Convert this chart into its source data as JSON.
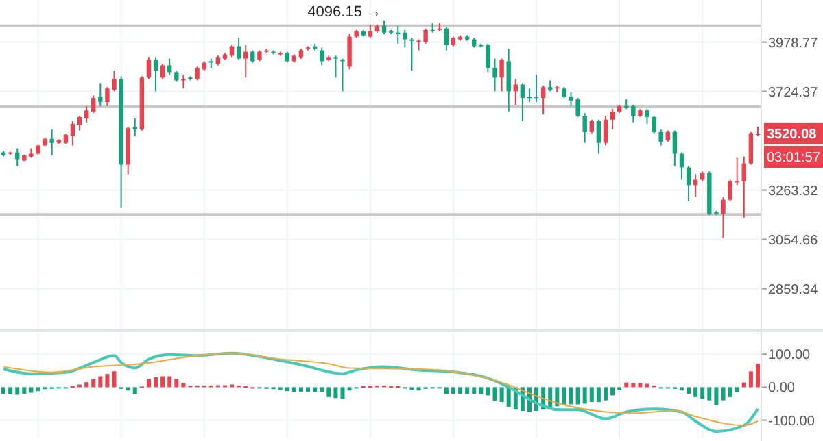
{
  "chart_data": [
    {
      "type": "candlestick",
      "categories": [
        null,
        null,
        null,
        null,
        null,
        null,
        null,
        null,
        null,
        null,
        null,
        null,
        null,
        null,
        null,
        null,
        null,
        null,
        null,
        null,
        null,
        null,
        null,
        null,
        null,
        null,
        null,
        null,
        null,
        null,
        null,
        null,
        null,
        null,
        null,
        null,
        null,
        null,
        null,
        null,
        null,
        null,
        null,
        null,
        null,
        null,
        null,
        null,
        null,
        null,
        null,
        null,
        null,
        null,
        null,
        null,
        null,
        null,
        null,
        null,
        null,
        null,
        null,
        null,
        null,
        null,
        null,
        null,
        null,
        null,
        null,
        null,
        null,
        null,
        null,
        null,
        null,
        null,
        null,
        null,
        null,
        null,
        null,
        null,
        null,
        null,
        null,
        null,
        null,
        null,
        null,
        null,
        null,
        null,
        null,
        null,
        null,
        null,
        null,
        null,
        null,
        null,
        null,
        null,
        null,
        null,
        null,
        null,
        null,
        null
      ],
      "ohlc": [
        [
          3432,
          3438,
          3413,
          3419
        ],
        [
          3426,
          3435,
          3422,
          3432
        ],
        [
          3432,
          3451,
          3370,
          3401
        ],
        [
          3395,
          3422,
          3392,
          3419
        ],
        [
          3413,
          3451,
          3407,
          3426
        ],
        [
          3426,
          3467,
          3423,
          3464
        ],
        [
          3464,
          3502,
          3462,
          3495
        ],
        [
          3495,
          3540,
          3419,
          3476
        ],
        [
          3476,
          3493,
          3472,
          3489
        ],
        [
          3476,
          3518,
          3472,
          3514
        ],
        [
          3508,
          3579,
          3464,
          3566
        ],
        [
          3560,
          3605,
          3534,
          3599
        ],
        [
          3592,
          3652,
          3573,
          3631
        ],
        [
          3625,
          3705,
          3618,
          3692
        ],
        [
          3698,
          3766,
          3652,
          3672
        ],
        [
          3672,
          3746,
          3652,
          3739
        ],
        [
          3732,
          3829,
          3725,
          3787
        ],
        [
          3787,
          3801,
          3186,
          3376
        ],
        [
          3376,
          3553,
          3333,
          3547
        ],
        [
          3553,
          3592,
          3508,
          3540
        ],
        [
          3540,
          3801,
          3534,
          3794
        ],
        [
          3794,
          3900,
          3787,
          3885
        ],
        [
          3885,
          3900,
          3725,
          3829
        ],
        [
          3794,
          3864,
          3787,
          3857
        ],
        [
          3857,
          3892,
          3808,
          3822
        ],
        [
          3822,
          3829,
          3773,
          3780
        ],
        [
          3780,
          3808,
          3739,
          3787
        ],
        [
          3794,
          3801,
          3780,
          3787
        ],
        [
          3787,
          3850,
          3780,
          3843
        ],
        [
          3836,
          3878,
          3829,
          3871
        ],
        [
          3878,
          3892,
          3843,
          3871
        ],
        [
          3864,
          3907,
          3857,
          3900
        ],
        [
          3892,
          3921,
          3885,
          3914
        ],
        [
          3907,
          3964,
          3900,
          3957
        ],
        [
          3957,
          4000,
          3885,
          3892
        ],
        [
          3892,
          3964,
          3794,
          3928
        ],
        [
          3928,
          3935,
          3871,
          3878
        ],
        [
          3885,
          3935,
          3878,
          3928
        ],
        [
          3928,
          3943,
          3921,
          3935
        ],
        [
          3928,
          3935,
          3914,
          3921
        ],
        [
          3914,
          3928,
          3907,
          3921
        ],
        [
          3921,
          3928,
          3871,
          3878
        ],
        [
          3878,
          3914,
          3871,
          3907
        ],
        [
          3900,
          3943,
          3892,
          3935
        ],
        [
          3943,
          3957,
          3935,
          3950
        ],
        [
          3957,
          3971,
          3935,
          3943
        ],
        [
          3935,
          3950,
          3857,
          3878
        ],
        [
          3885,
          3907,
          3878,
          3900
        ],
        [
          3900,
          3907,
          3794,
          3892
        ],
        [
          3885,
          3892,
          3725,
          3878
        ],
        [
          3850,
          4022,
          3836,
          4008
        ],
        [
          4008,
          4044,
          4000,
          4037
        ],
        [
          4037,
          4044,
          4008,
          4015
        ],
        [
          4008,
          4074,
          4000,
          4037
        ],
        [
          4037,
          4074,
          4030,
          4067
        ],
        [
          4067,
          4096.15,
          4022,
          4030
        ],
        [
          4037,
          4044,
          4022,
          4030
        ],
        [
          4030,
          4067,
          3971,
          4022
        ],
        [
          4030,
          4044,
          3950,
          3993
        ],
        [
          3993,
          4000,
          3829,
          3986
        ],
        [
          3979,
          3993,
          3935,
          3986
        ],
        [
          3979,
          4052,
          3971,
          4044
        ],
        [
          4044,
          4081,
          4030,
          4037
        ],
        [
          4044,
          4081,
          4037,
          4052
        ],
        [
          4052,
          4059,
          3935,
          3964
        ],
        [
          3964,
          4008,
          3957,
          4000
        ],
        [
          3993,
          4015,
          3986,
          4008
        ],
        [
          4008,
          4015,
          3986,
          3993
        ],
        [
          3993,
          4000,
          3950,
          3957
        ],
        [
          3964,
          3971,
          3950,
          3957
        ],
        [
          3964,
          3971,
          3822,
          3843
        ],
        [
          3843,
          3892,
          3725,
          3794
        ],
        [
          3794,
          3892,
          3725,
          3885
        ],
        [
          3878,
          3943,
          3625,
          3725
        ],
        [
          3725,
          3787,
          3658,
          3759
        ],
        [
          3759,
          3766,
          3579,
          3692
        ],
        [
          3698,
          3739,
          3672,
          3692
        ],
        [
          3698,
          3808,
          3672,
          3692
        ],
        [
          3692,
          3753,
          3612,
          3746
        ],
        [
          3746,
          3780,
          3725,
          3732
        ],
        [
          3739,
          3753,
          3719,
          3746
        ],
        [
          3739,
          3746,
          3692,
          3698
        ],
        [
          3698,
          3719,
          3652,
          3679
        ],
        [
          3685,
          3692,
          3599,
          3605
        ],
        [
          3605,
          3618,
          3476,
          3527
        ],
        [
          3527,
          3586,
          3521,
          3579
        ],
        [
          3579,
          3586,
          3426,
          3476
        ],
        [
          3476,
          3605,
          3464,
          3586
        ],
        [
          3586,
          3638,
          3540,
          3625
        ],
        [
          3625,
          3658,
          3618,
          3652
        ],
        [
          3652,
          3685,
          3638,
          3645
        ],
        [
          3652,
          3658,
          3573,
          3605
        ],
        [
          3605,
          3638,
          3599,
          3631
        ],
        [
          3631,
          3638,
          3566,
          3599
        ],
        [
          3599,
          3605,
          3521,
          3527
        ],
        [
          3527,
          3540,
          3464,
          3482
        ],
        [
          3489,
          3534,
          3482,
          3527
        ],
        [
          3527,
          3534,
          3370,
          3426
        ],
        [
          3426,
          3432,
          3309,
          3364
        ],
        [
          3364,
          3370,
          3215,
          3285
        ],
        [
          3285,
          3333,
          3232,
          3309
        ],
        [
          3309,
          3346,
          3303,
          3339
        ],
        [
          3339,
          3346,
          3156,
          3162
        ],
        [
          3168,
          3174,
          3156,
          3162
        ],
        [
          3162,
          3232,
          3061,
          3221
        ],
        [
          3221,
          3309,
          3215,
          3303
        ],
        [
          3297,
          3407,
          3285,
          3303
        ],
        [
          3303,
          3413,
          3145,
          3382
        ],
        [
          3382,
          3527,
          3376,
          3521
        ],
        [
          3514,
          3553,
          3508,
          3520.08
        ]
      ],
      "colors": [
        "#12a37b",
        "#e8424e",
        "#12a37b",
        "#e8424e",
        "#e8424e",
        "#e8424e",
        "#e8424e",
        "#12a37b",
        "#e8424e",
        "#e8424e",
        "#e8424e",
        "#e8424e",
        "#e8424e",
        "#e8424e",
        "#12a37b",
        "#e8424e",
        "#e8424e",
        "#12a37b",
        "#e8424e",
        "#12a37b",
        "#e8424e",
        "#e8424e",
        "#12a37b",
        "#e8424e",
        "#12a37b",
        "#12a37b",
        "#e8424e",
        "#12a37b",
        "#e8424e",
        "#e8424e",
        "#12a37b",
        "#e8424e",
        "#e8424e",
        "#e8424e",
        "#12a37b",
        "#e8424e",
        "#12a37b",
        "#e8424e",
        "#e8424e",
        "#12a37b",
        "#e8424e",
        "#12a37b",
        "#e8424e",
        "#e8424e",
        "#e8424e",
        "#12a37b",
        "#12a37b",
        "#e8424e",
        "#12a37b",
        "#12a37b",
        "#e8424e",
        "#e8424e",
        "#12a37b",
        "#e8424e",
        "#e8424e",
        "#12a37b",
        "#12a37b",
        "#12a37b",
        "#12a37b",
        "#12a37b",
        "#e8424e",
        "#e8424e",
        "#12a37b",
        "#e8424e",
        "#12a37b",
        "#e8424e",
        "#e8424e",
        "#12a37b",
        "#12a37b",
        "#12a37b",
        "#12a37b",
        "#12a37b",
        "#e8424e",
        "#12a37b",
        "#e8424e",
        "#12a37b",
        "#12a37b",
        "#12a37b",
        "#e8424e",
        "#12a37b",
        "#e8424e",
        "#12a37b",
        "#12a37b",
        "#12a37b",
        "#12a37b",
        "#e8424e",
        "#12a37b",
        "#e8424e",
        "#e8424e",
        "#e8424e",
        "#12a37b",
        "#12a37b",
        "#e8424e",
        "#12a37b",
        "#12a37b",
        "#12a37b",
        "#e8424e",
        "#12a37b",
        "#12a37b",
        "#12a37b",
        "#e8424e",
        "#e8424e",
        "#12a37b",
        "#12a37b",
        "#e8424e",
        "#e8424e",
        "#e8424e",
        "#e8424e",
        "#e8424e",
        "#e8424e"
      ],
      "ylim": [
        2710,
        4210
      ],
      "yticks": [
        2859.34,
        3054.66,
        3263.32,
        3724.37,
        3978.77
      ],
      "log": true,
      "grid": true,
      "ref_lines": [
        {
          "axis": "y",
          "value": 4067,
          "color": "#c8c8c8"
        },
        {
          "axis": "y",
          "value": 3650,
          "color": "#c8c8c8"
        },
        {
          "axis": "y",
          "value": 3158,
          "color": "#c8c8c8"
        }
      ],
      "annotations": [
        {
          "text": "4096.15 →",
          "y": 4096.15
        },
        "3520.08",
        "03:01:57"
      ]
    },
    {
      "type": "bar",
      "categories": [
        null,
        null,
        null,
        null,
        null,
        null,
        null,
        null,
        null,
        null,
        null,
        null,
        null,
        null,
        null,
        null,
        null,
        null,
        null,
        null,
        null,
        null,
        null,
        null,
        null,
        null,
        null,
        null,
        null,
        null,
        null,
        null,
        null,
        null,
        null,
        null,
        null,
        null,
        null,
        null,
        null,
        null,
        null,
        null,
        null,
        null,
        null,
        null,
        null,
        null,
        null,
        null,
        null,
        null,
        null,
        null,
        null,
        null,
        null,
        null,
        null,
        null,
        null,
        null,
        null,
        null,
        null,
        null,
        null,
        null,
        null,
        null,
        null,
        null,
        null,
        null,
        null,
        null,
        null,
        null,
        null,
        null,
        null,
        null,
        null,
        null,
        null,
        null,
        null,
        null,
        null,
        null,
        null,
        null,
        null,
        null,
        null,
        null,
        null,
        null,
        null,
        null,
        null,
        null,
        null,
        null,
        null,
        null,
        null,
        null
      ],
      "series": [
        {
          "type": "bar",
          "values": [
            -20,
            -22,
            -23,
            -20,
            -17,
            -12,
            -6,
            -5,
            -4,
            -3,
            3,
            8,
            15,
            25,
            33,
            40,
            48,
            -5,
            -10,
            -22,
            2,
            25,
            30,
            33,
            33,
            25,
            12,
            5,
            5,
            5,
            5,
            6,
            6,
            8,
            5,
            3,
            0,
            -2,
            -5,
            -6,
            -8,
            -12,
            -15,
            -14,
            -14,
            -14,
            -14,
            -30,
            -33,
            -35,
            -10,
            -4,
            3,
            3,
            5,
            5,
            3,
            3,
            -4,
            -8,
            -10,
            -5,
            -3,
            -3,
            -20,
            -20,
            -20,
            -20,
            -20,
            -22,
            -25,
            -41,
            -45,
            -60,
            -68,
            -72,
            -75,
            -72,
            -68,
            -62,
            -58,
            -55,
            -52,
            -52,
            -50,
            -45,
            -45,
            -40,
            -25,
            -8,
            14,
            12,
            12,
            10,
            5,
            -3,
            -3,
            -5,
            -10,
            -20,
            -30,
            -35,
            -40,
            -55,
            -40,
            -30,
            -15,
            14,
            48,
            71
          ],
          "colors": [
            "#12a37b",
            "#12a37b",
            "#12a37b",
            "#12a37b",
            "#12a37b",
            "#12a37b",
            "#12a37b",
            "#12a37b",
            "#12a37b",
            "#12a37b",
            "#e8424e",
            "#e8424e",
            "#e8424e",
            "#e8424e",
            "#e8424e",
            "#e8424e",
            "#e8424e",
            "#12a37b",
            "#12a37b",
            "#12a37b",
            "#e8424e",
            "#e8424e",
            "#e8424e",
            "#e8424e",
            "#e8424e",
            "#e8424e",
            "#e8424e",
            "#e8424e",
            "#e8424e",
            "#e8424e",
            "#e8424e",
            "#e8424e",
            "#e8424e",
            "#e8424e",
            "#e8424e",
            "#e8424e",
            "#e8424e",
            "#12a37b",
            "#12a37b",
            "#12a37b",
            "#12a37b",
            "#12a37b",
            "#12a37b",
            "#12a37b",
            "#12a37b",
            "#12a37b",
            "#12a37b",
            "#12a37b",
            "#12a37b",
            "#12a37b",
            "#12a37b",
            "#12a37b",
            "#e8424e",
            "#e8424e",
            "#e8424e",
            "#e8424e",
            "#e8424e",
            "#e8424e",
            "#12a37b",
            "#12a37b",
            "#12a37b",
            "#12a37b",
            "#12a37b",
            "#12a37b",
            "#12a37b",
            "#12a37b",
            "#12a37b",
            "#12a37b",
            "#12a37b",
            "#12a37b",
            "#12a37b",
            "#12a37b",
            "#12a37b",
            "#12a37b",
            "#12a37b",
            "#12a37b",
            "#12a37b",
            "#12a37b",
            "#12a37b",
            "#12a37b",
            "#12a37b",
            "#12a37b",
            "#12a37b",
            "#12a37b",
            "#12a37b",
            "#12a37b",
            "#12a37b",
            "#12a37b",
            "#12a37b",
            "#12a37b",
            "#e8424e",
            "#e8424e",
            "#e8424e",
            "#e8424e",
            "#e8424e",
            "#12a37b",
            "#12a37b",
            "#12a37b",
            "#12a37b",
            "#12a37b",
            "#12a37b",
            "#12a37b",
            "#12a37b",
            "#12a37b",
            "#12a37b",
            "#12a37b",
            "#12a37b",
            "#e8424e",
            "#e8424e",
            "#e8424e"
          ]
        },
        {
          "type": "line",
          "color": "#45c9b8",
          "values": [
            55,
            null,
            null,
            null,
            41,
            null,
            null,
            null,
            null,
            45,
            null,
            null,
            null,
            75,
            null,
            null,
            96,
            75,
            null,
            58,
            null,
            85,
            null,
            null,
            99,
            null,
            null,
            null,
            96,
            null,
            null,
            null,
            null,
            103,
            null,
            null,
            null,
            93,
            null,
            null,
            null,
            null,
            null,
            68,
            null,
            null,
            null,
            null,
            null,
            41,
            null,
            52,
            null,
            null,
            null,
            62,
            null,
            null,
            null,
            null,
            52,
            null,
            null,
            null,
            48,
            null,
            null,
            null,
            null,
            null,
            27,
            null,
            null,
            0,
            null,
            null,
            null,
            -48,
            null,
            null,
            -68,
            null,
            null,
            -68,
            null,
            null,
            null,
            -96,
            null,
            null,
            -75,
            null,
            null,
            null,
            -66,
            null,
            null,
            null,
            -75,
            null,
            -103,
            null,
            null,
            -134,
            null,
            null,
            null,
            -116,
            null,
            -66
          ]
        },
        {
          "type": "line",
          "color": "#f2a93b",
          "values": [
            62,
            null,
            null,
            null,
            null,
            null,
            null,
            45,
            null,
            null,
            null,
            null,
            null,
            62,
            null,
            null,
            null,
            null,
            null,
            null,
            71,
            null,
            null,
            null,
            null,
            null,
            null,
            93,
            null,
            null,
            null,
            null,
            null,
            103,
            null,
            null,
            null,
            null,
            null,
            null,
            85,
            null,
            null,
            null,
            null,
            null,
            null,
            71,
            null,
            null,
            58,
            null,
            null,
            null,
            null,
            null,
            null,
            null,
            null,
            null,
            55,
            null,
            null,
            null,
            null,
            null,
            null,
            41,
            null,
            null,
            null,
            null,
            null,
            7,
            null,
            null,
            null,
            -27,
            null,
            null,
            -48,
            null,
            null,
            null,
            null,
            null,
            null,
            -75,
            null,
            null,
            null,
            -79,
            null,
            null,
            null,
            null,
            null,
            -71,
            null,
            null,
            -89,
            null,
            null,
            null,
            null,
            null,
            null,
            -116,
            null,
            -103
          ]
        }
      ],
      "ylim": [
        -155,
        165
      ],
      "yticks": [
        {
          "value": 100,
          "label": "100.00"
        },
        {
          "value": 0,
          "label": "0.00"
        },
        {
          "value": -100,
          "label": "-100.00"
        }
      ],
      "grid": true
    }
  ]
}
